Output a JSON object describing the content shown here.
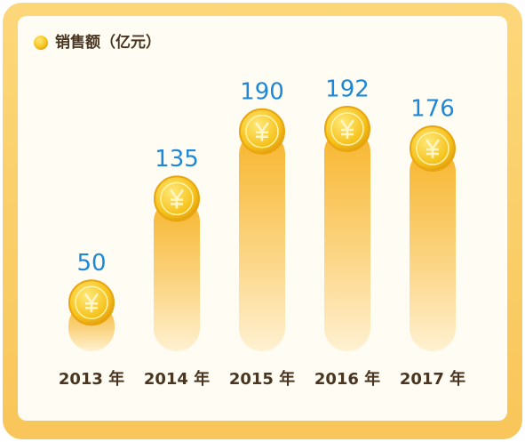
{
  "chart_data": {
    "type": "bar",
    "series": [
      {
        "name": "销售额（亿元）",
        "color": "#f5b82a",
        "values": [
          50,
          135,
          190,
          192,
          176
        ]
      }
    ],
    "categories": [
      "2013 年",
      "2014 年",
      "2015 年",
      "2016 年",
      "2017 年"
    ]
  }
}
